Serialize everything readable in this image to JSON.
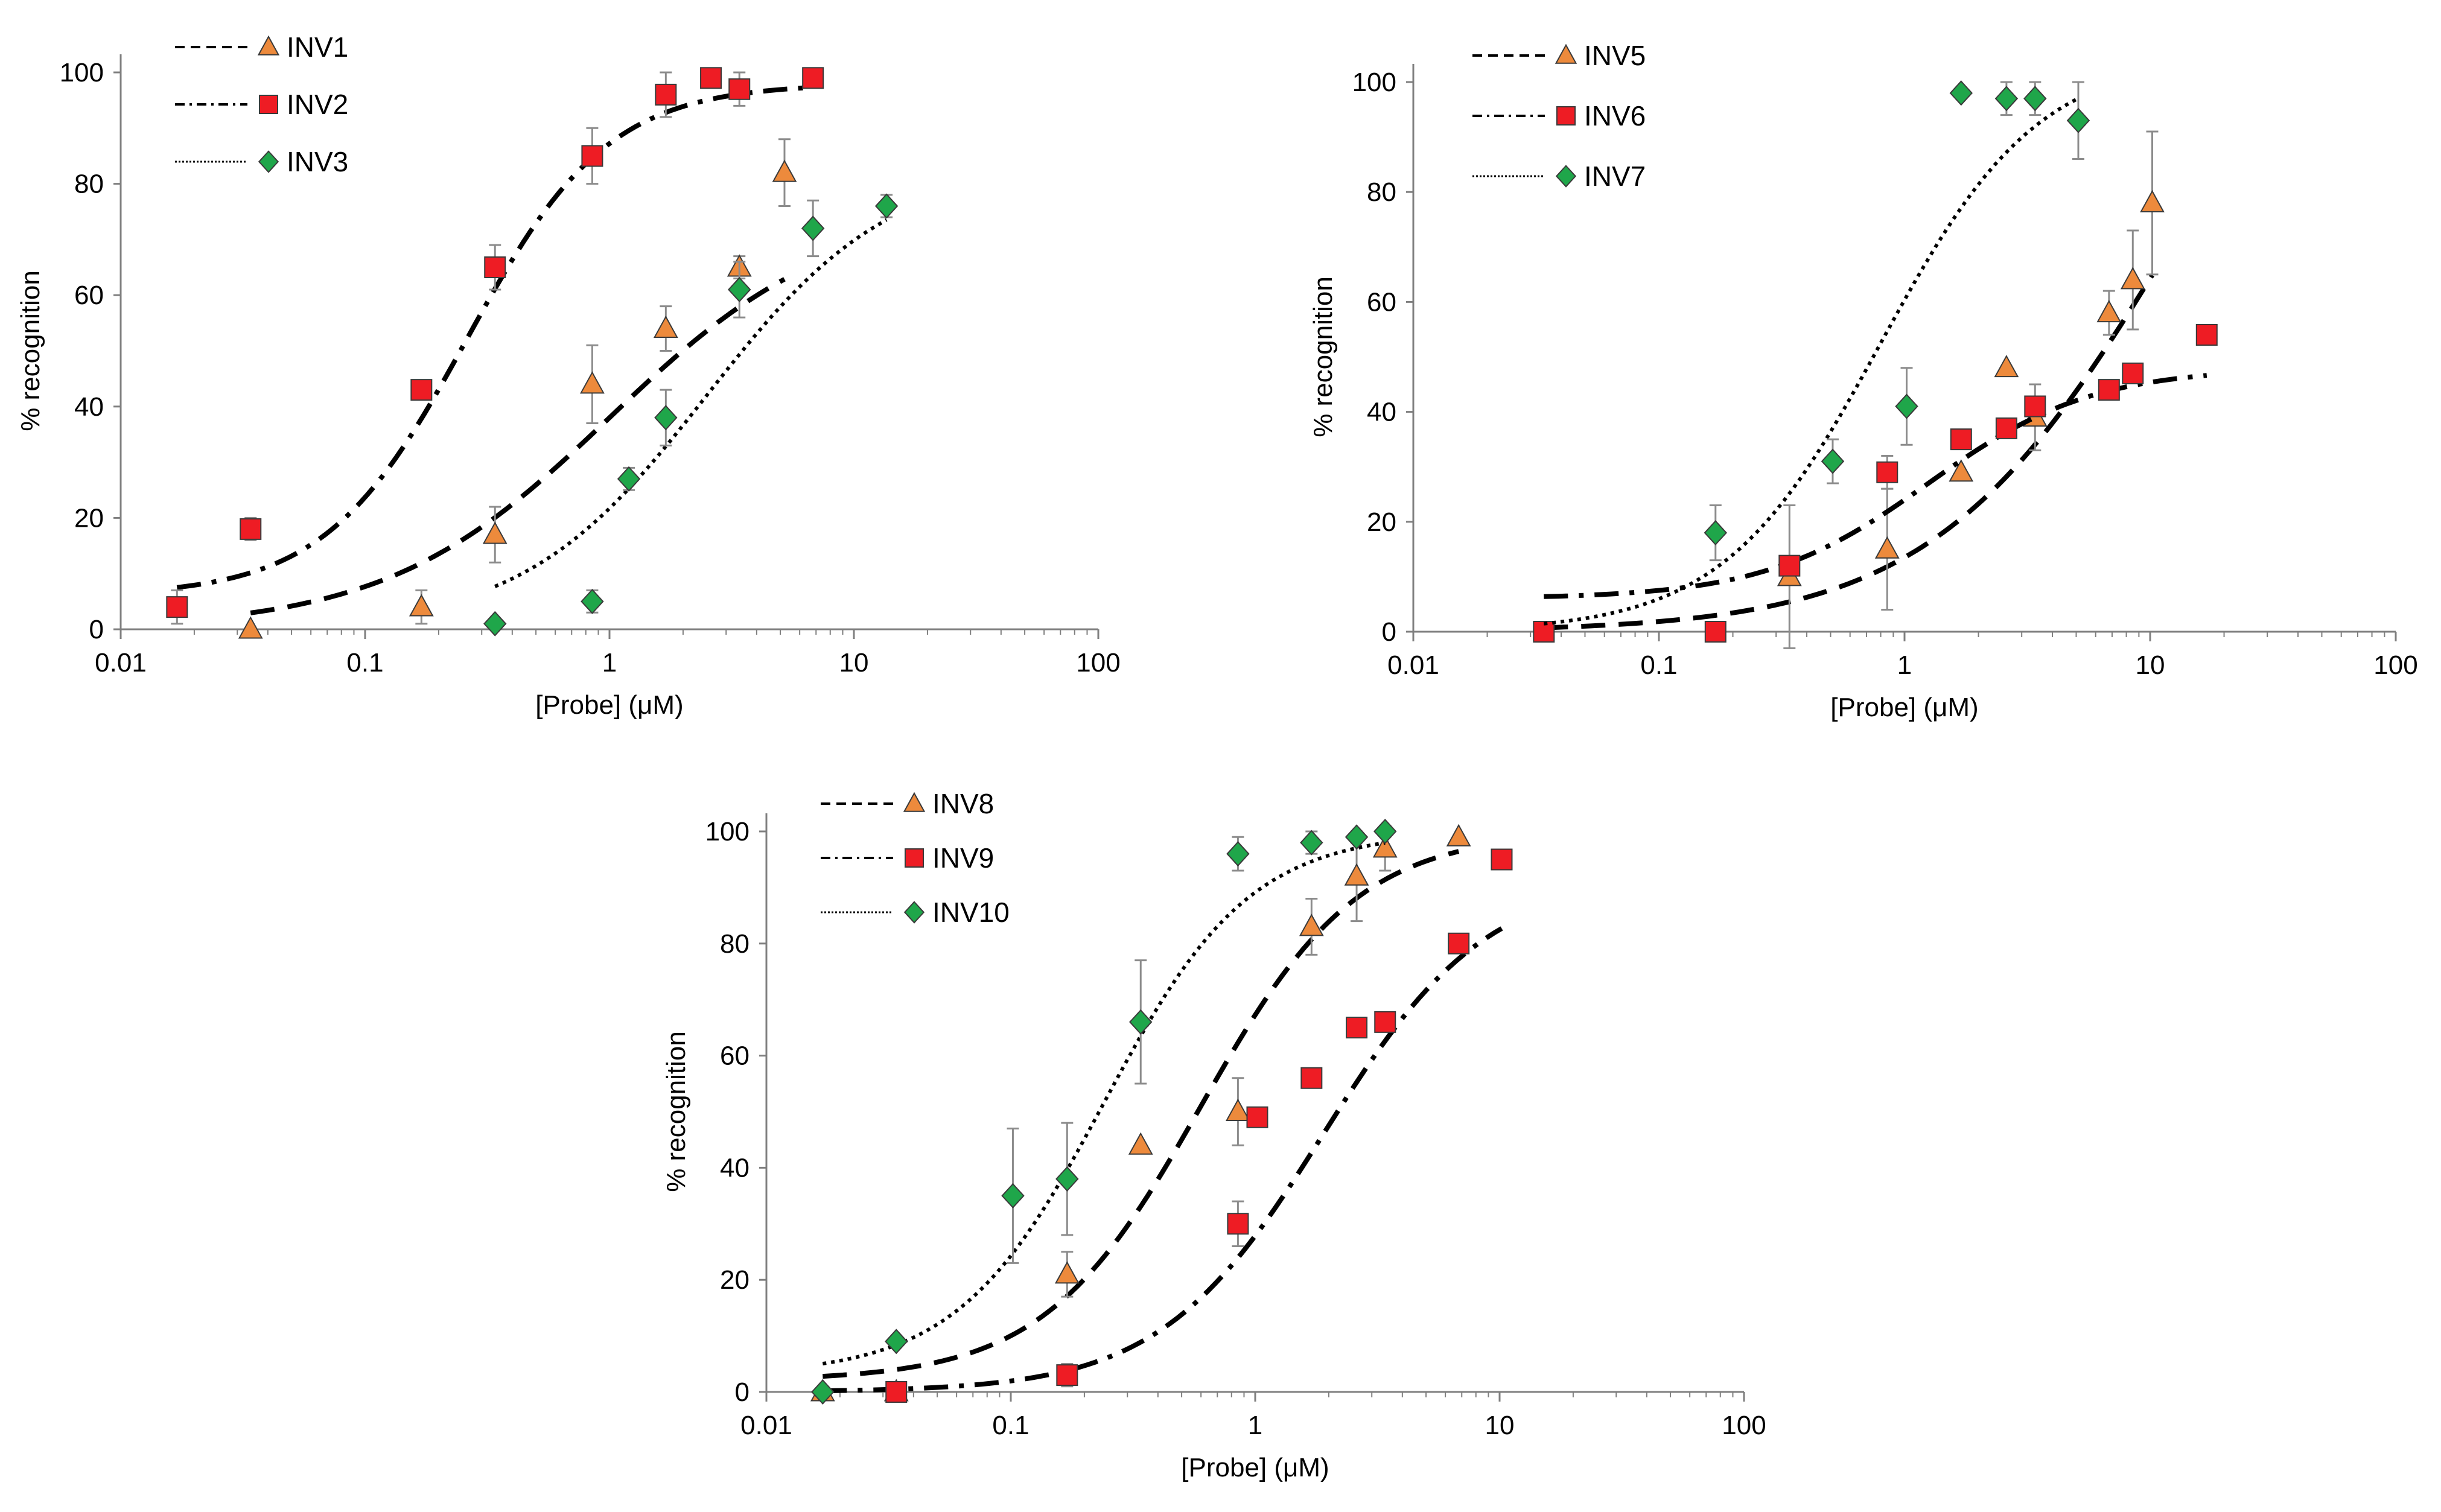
{
  "figure": {
    "colors": {
      "INV_a": "#ed8a3c",
      "INV_b": "#ee1c24",
      "INV_c": "#1fa64a",
      "axis": "#7f7f7f",
      "error_bar": "#8c8c8c"
    }
  },
  "chart_data": [
    {
      "type": "scatter",
      "xscale": "log",
      "xlim": [
        0.01,
        100
      ],
      "ylim": [
        0,
        100
      ],
      "xlabel": "[Probe] (μM)",
      "ylabel": "% recognition",
      "xticks": [
        "0.01",
        "0.1",
        "1",
        "10",
        "100"
      ],
      "yticks": [
        "0",
        "20",
        "40",
        "60",
        "80",
        "100"
      ],
      "legend_position": "top-left",
      "series": [
        {
          "name": "INV1",
          "marker": "triangle",
          "color": "#ed8a3c",
          "line": "dashed",
          "points": [
            {
              "x": 0.034,
              "y": 0,
              "err": 0
            },
            {
              "x": 0.17,
              "y": 4,
              "err": 3
            },
            {
              "x": 0.34,
              "y": 17,
              "err": 5
            },
            {
              "x": 0.85,
              "y": 44,
              "err": 7
            },
            {
              "x": 1.7,
              "y": 54,
              "err": 4
            },
            {
              "x": 3.4,
              "y": 65,
              "err": 2
            },
            {
              "x": 5.2,
              "y": 82,
              "err": 6
            }
          ],
          "fit": {
            "bottom": 0,
            "top": 76,
            "ec50": 1.0,
            "hill": 0.95,
            "xmin": 0.034,
            "xmax": 5.2
          }
        },
        {
          "name": "INV2",
          "marker": "square",
          "color": "#ee1c24",
          "line": "dash-dot",
          "points": [
            {
              "x": 0.017,
              "y": 4,
              "err": 3
            },
            {
              "x": 0.034,
              "y": 18,
              "err": 2
            },
            {
              "x": 0.17,
              "y": 43,
              "err": 0
            },
            {
              "x": 0.34,
              "y": 65,
              "err": 4
            },
            {
              "x": 0.85,
              "y": 85,
              "err": 5
            },
            {
              "x": 1.7,
              "y": 96,
              "err": 4
            },
            {
              "x": 2.6,
              "y": 99,
              "err": 0
            },
            {
              "x": 3.4,
              "y": 97,
              "err": 3
            },
            {
              "x": 6.8,
              "y": 99,
              "err": 0
            }
          ],
          "fit": {
            "bottom": 6,
            "top": 98,
            "ec50": 0.26,
            "hill": 1.5,
            "xmin": 0.017,
            "xmax": 6.8
          }
        },
        {
          "name": "INV3",
          "marker": "diamond",
          "color": "#1fa64a",
          "line": "dotted",
          "points": [
            {
              "x": 0.34,
              "y": 1,
              "err": 0
            },
            {
              "x": 0.85,
              "y": 5,
              "err": 2
            },
            {
              "x": 1.2,
              "y": 27,
              "err": 2
            },
            {
              "x": 1.7,
              "y": 38,
              "err": 5
            },
            {
              "x": 3.4,
              "y": 61,
              "err": 5
            },
            {
              "x": 6.8,
              "y": 72,
              "err": 5
            },
            {
              "x": 13.6,
              "y": 76,
              "err": 2
            }
          ],
          "fit": {
            "bottom": 0,
            "top": 84,
            "ec50": 2.5,
            "hill": 1.15,
            "xmin": 0.34,
            "xmax": 13.6
          }
        }
      ]
    },
    {
      "type": "scatter",
      "xscale": "log",
      "xlim": [
        0.01,
        100
      ],
      "ylim": [
        0,
        100
      ],
      "xlabel": "[Probe] (μM)",
      "ylabel": "% recognition",
      "xticks": [
        "0.01",
        "0.1",
        "1",
        "10",
        "100"
      ],
      "yticks": [
        "0",
        "20",
        "40",
        "60",
        "80",
        "100"
      ],
      "legend_position": "top-left",
      "series": [
        {
          "name": "INV5",
          "marker": "triangle",
          "color": "#ed8a3c",
          "line": "dashed",
          "points": [
            {
              "x": 0.34,
              "y": 10,
              "err": 13
            },
            {
              "x": 0.85,
              "y": 15,
              "err": 11
            },
            {
              "x": 1.7,
              "y": 29,
              "err": 0
            },
            {
              "x": 2.6,
              "y": 48,
              "err": 0
            },
            {
              "x": 3.4,
              "y": 39,
              "err": 6
            },
            {
              "x": 6.8,
              "y": 58,
              "err": 4
            },
            {
              "x": 8.5,
              "y": 64,
              "err": 9
            },
            {
              "x": 10.2,
              "y": 78,
              "err": 13
            }
          ],
          "fit": {
            "bottom": 0,
            "top": 140,
            "ec50": 12,
            "hill": 0.9,
            "xmin": 0.034,
            "xmax": 10.2
          }
        },
        {
          "name": "INV6",
          "marker": "square",
          "color": "#ee1c24",
          "line": "dash-dot",
          "points": [
            {
              "x": 0.034,
              "y": 0,
              "err": 0
            },
            {
              "x": 0.17,
              "y": 0,
              "err": 0
            },
            {
              "x": 0.34,
              "y": 12,
              "err": 0
            },
            {
              "x": 0.85,
              "y": 29,
              "err": 3
            },
            {
              "x": 1.7,
              "y": 35,
              "err": 0
            },
            {
              "x": 2.6,
              "y": 37,
              "err": 0
            },
            {
              "x": 3.4,
              "y": 41,
              "err": 0
            },
            {
              "x": 6.8,
              "y": 44,
              "err": 0
            },
            {
              "x": 8.5,
              "y": 47,
              "err": 0
            },
            {
              "x": 17,
              "y": 54,
              "err": 0
            }
          ],
          "fit": {
            "bottom": 6,
            "top": 48,
            "ec50": 1.25,
            "hill": 1.3,
            "xmin": 0.034,
            "xmax": 17
          }
        },
        {
          "name": "INV7",
          "marker": "diamond",
          "color": "#1fa64a",
          "line": "dotted",
          "points": [
            {
              "x": 0.17,
              "y": 18,
              "err": 5
            },
            {
              "x": 0.51,
              "y": 31,
              "err": 4
            },
            {
              "x": 1.02,
              "y": 41,
              "err": 7
            },
            {
              "x": 1.7,
              "y": 98,
              "err": 0
            },
            {
              "x": 2.6,
              "y": 97,
              "err": 3
            },
            {
              "x": 3.4,
              "y": 97,
              "err": 3
            },
            {
              "x": 5.1,
              "y": 93,
              "err": 7
            }
          ],
          "fit": {
            "bottom": 0,
            "top": 105,
            "ec50": 0.8,
            "hill": 1.35,
            "xmin": 0.034,
            "xmax": 5.1
          }
        }
      ]
    },
    {
      "type": "scatter",
      "xscale": "log",
      "xlim": [
        0.01,
        100
      ],
      "ylim": [
        0,
        100
      ],
      "xlabel": "[Probe] (μM)",
      "ylabel": "% recognition",
      "xticks": [
        "0.01",
        "0.1",
        "1",
        "10",
        "100"
      ],
      "yticks": [
        "0",
        "20",
        "40",
        "60",
        "80",
        "100"
      ],
      "legend_position": "top-left",
      "series": [
        {
          "name": "INV8",
          "marker": "triangle",
          "color": "#ed8a3c",
          "line": "dashed",
          "points": [
            {
              "x": 0.017,
              "y": 0,
              "err": 0
            },
            {
              "x": 0.034,
              "y": 0,
              "err": 0
            },
            {
              "x": 0.17,
              "y": 21,
              "err": 4
            },
            {
              "x": 0.34,
              "y": 44,
              "err": 0
            },
            {
              "x": 0.85,
              "y": 50,
              "err": 6
            },
            {
              "x": 1.7,
              "y": 83,
              "err": 5
            },
            {
              "x": 2.6,
              "y": 92,
              "err": 8
            },
            {
              "x": 3.4,
              "y": 97,
              "err": 4
            },
            {
              "x": 6.8,
              "y": 99,
              "err": 0
            }
          ],
          "fit": {
            "bottom": 2,
            "top": 100,
            "ec50": 0.6,
            "hill": 1.35,
            "xmin": 0.017,
            "xmax": 6.8
          }
        },
        {
          "name": "INV9",
          "marker": "square",
          "color": "#ee1c24",
          "line": "dash-dot",
          "points": [
            {
              "x": 0.034,
              "y": 0,
              "err": 0
            },
            {
              "x": 0.17,
              "y": 3,
              "err": 2
            },
            {
              "x": 0.85,
              "y": 30,
              "err": 4
            },
            {
              "x": 1.02,
              "y": 49,
              "err": 0
            },
            {
              "x": 1.7,
              "y": 56,
              "err": 0
            },
            {
              "x": 2.6,
              "y": 65,
              "err": 0
            },
            {
              "x": 3.4,
              "y": 66,
              "err": 0
            },
            {
              "x": 6.8,
              "y": 80,
              "err": 0
            },
            {
              "x": 10.2,
              "y": 95,
              "err": 0
            }
          ],
          "fit": {
            "bottom": 0,
            "top": 92,
            "ec50": 1.9,
            "hill": 1.3,
            "xmin": 0.017,
            "xmax": 10.2
          }
        },
        {
          "name": "INV10",
          "marker": "diamond",
          "color": "#1fa64a",
          "line": "dotted",
          "points": [
            {
              "x": 0.017,
              "y": 0,
              "err": 0
            },
            {
              "x": 0.034,
              "y": 9,
              "err": 0
            },
            {
              "x": 0.102,
              "y": 35,
              "err": 12
            },
            {
              "x": 0.17,
              "y": 38,
              "err": 10
            },
            {
              "x": 0.34,
              "y": 66,
              "err": 11
            },
            {
              "x": 0.85,
              "y": 96,
              "err": 3
            },
            {
              "x": 1.7,
              "y": 98,
              "err": 2
            },
            {
              "x": 2.6,
              "y": 99,
              "err": 0
            },
            {
              "x": 3.4,
              "y": 100,
              "err": 0
            }
          ],
          "fit": {
            "bottom": 3,
            "top": 100,
            "ec50": 0.24,
            "hill": 1.45,
            "xmin": 0.017,
            "xmax": 3.4
          }
        }
      ]
    }
  ]
}
